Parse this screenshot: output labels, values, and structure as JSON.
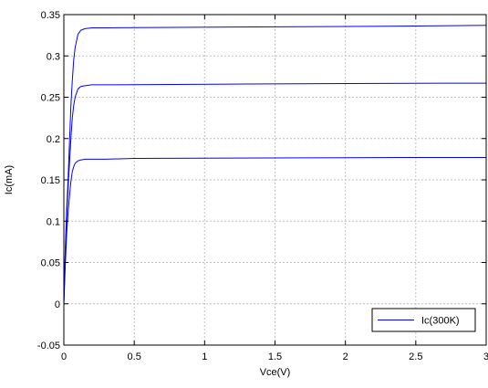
{
  "chart_data": {
    "type": "line",
    "title": "",
    "xlabel": "Vce(V)",
    "ylabel": "Ic(mA)",
    "xlim": [
      0,
      3
    ],
    "ylim": [
      -0.05,
      0.35
    ],
    "x_ticks": [
      0,
      0.5,
      1,
      1.5,
      2,
      2.5,
      3
    ],
    "x_tick_labels": [
      "0",
      "0.5",
      "1",
      "1.5",
      "2",
      "2.5",
      "3"
    ],
    "y_ticks": [
      -0.05,
      0,
      0.05,
      0.1,
      0.15,
      0.2,
      0.25,
      0.3,
      0.35
    ],
    "y_tick_labels": [
      "-0.05",
      "0",
      "0.05",
      "0.1",
      "0.15",
      "0.2",
      "0.25",
      "0.3",
      "0.35"
    ],
    "grid": true,
    "legend": {
      "position": "bottom-right",
      "entries": [
        "Ic(300K)"
      ]
    },
    "colors": {
      "series": "#0000ff",
      "axes": "#000000",
      "grid": "#bfbfbf"
    },
    "series": [
      {
        "name": "Ic(300K)",
        "x": [
          0,
          0.01,
          0.02,
          0.03,
          0.04,
          0.05,
          0.06,
          0.07,
          0.08,
          0.1,
          0.12,
          0.15,
          0.2,
          0.3,
          1.2,
          2.4,
          3.0
        ],
        "y": [
          0,
          0.065,
          0.115,
          0.15,
          0.195,
          0.24,
          0.27,
          0.295,
          0.31,
          0.326,
          0.331,
          0.333,
          0.334,
          0.334,
          0.335,
          0.336,
          0.337
        ]
      },
      {
        "name": "",
        "x": [
          0,
          0.01,
          0.02,
          0.03,
          0.04,
          0.05,
          0.06,
          0.07,
          0.08,
          0.1,
          0.12,
          0.15,
          0.2,
          0.3,
          1.3,
          2.7,
          3.0
        ],
        "y": [
          0,
          0.06,
          0.105,
          0.14,
          0.17,
          0.2,
          0.225,
          0.24,
          0.25,
          0.26,
          0.263,
          0.264,
          0.265,
          0.265,
          0.266,
          0.267,
          0.267
        ]
      },
      {
        "name": "",
        "x": [
          0,
          0.01,
          0.02,
          0.03,
          0.04,
          0.05,
          0.06,
          0.07,
          0.08,
          0.1,
          0.12,
          0.15,
          0.2,
          0.3,
          0.5,
          2.4,
          3.0
        ],
        "y": [
          0,
          0.045,
          0.085,
          0.11,
          0.13,
          0.148,
          0.16,
          0.166,
          0.17,
          0.173,
          0.174,
          0.175,
          0.175,
          0.175,
          0.176,
          0.177,
          0.177
        ]
      }
    ]
  }
}
